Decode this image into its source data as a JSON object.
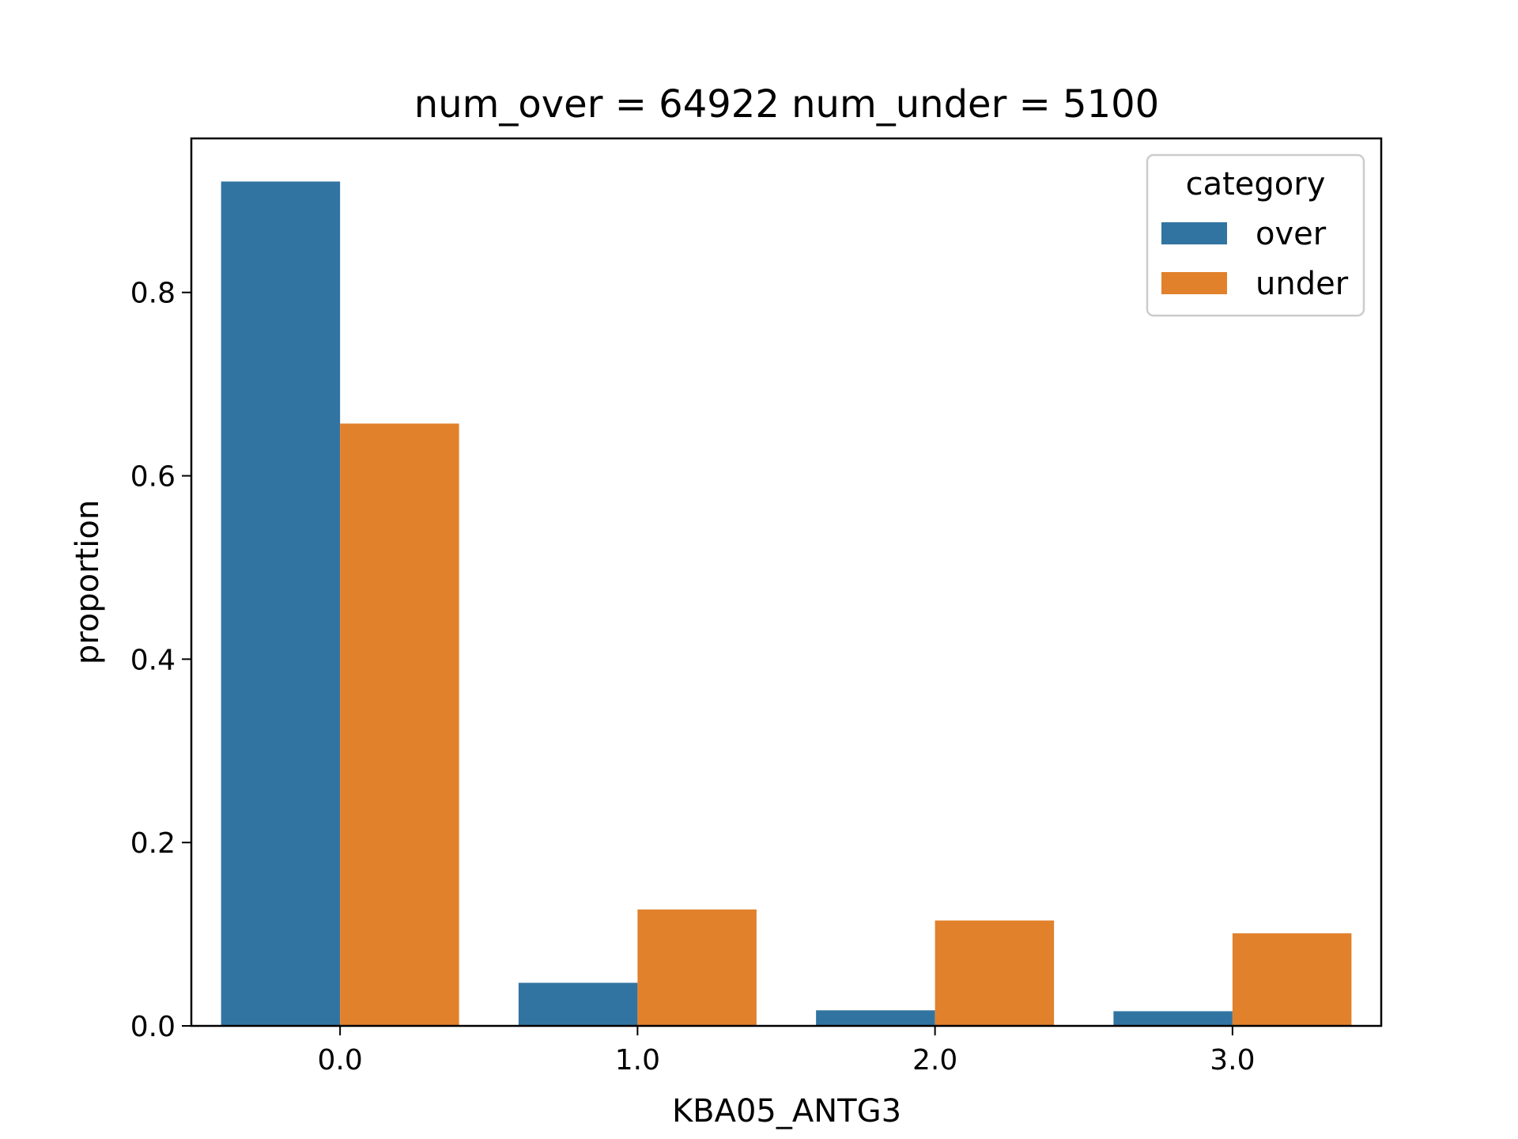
{
  "chart_data": {
    "type": "bar",
    "title": "num_over = 64922  num_under = 5100",
    "xlabel": "KBA05_ANTG3",
    "ylabel": "proportion",
    "categories": [
      "0.0",
      "1.0",
      "2.0",
      "3.0"
    ],
    "series": [
      {
        "name": "over",
        "color": "#3274a1",
        "values": [
          0.921,
          0.047,
          0.017,
          0.016
        ]
      },
      {
        "name": "under",
        "color": "#e1812c",
        "values": [
          0.657,
          0.127,
          0.115,
          0.101
        ]
      }
    ],
    "ylim": [
      0,
      0.968
    ],
    "yticks": [
      0.0,
      0.2,
      0.4,
      0.6,
      0.8
    ],
    "ytick_labels": [
      "0.0",
      "0.2",
      "0.4",
      "0.6",
      "0.8"
    ],
    "legend": {
      "title": "category",
      "placement": "top-right"
    },
    "grid": false
  }
}
